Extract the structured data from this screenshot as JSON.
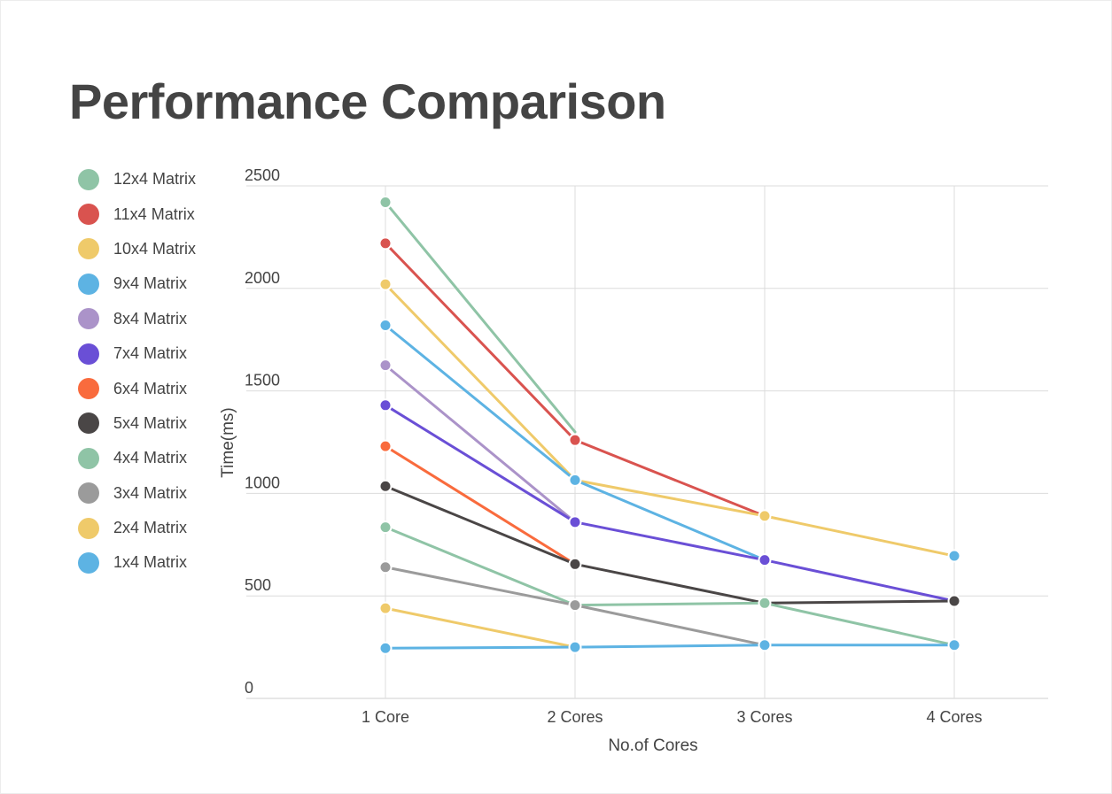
{
  "title": "Performance Comparison",
  "chart_data": {
    "type": "line",
    "title": "Performance Comparison",
    "xlabel": "No.of Cores",
    "ylabel": "Time(ms)",
    "categories": [
      "1 Core",
      "2 Cores",
      "3 Cores",
      "4 Cores"
    ],
    "ylim": [
      0,
      2500
    ],
    "yticks": [
      0,
      500,
      1000,
      1500,
      2000,
      2500
    ],
    "grid": true,
    "legend": "left",
    "series": [
      {
        "name": "12x4 Matrix",
        "color": "#8fc4a6",
        "values": [
          2420,
          1300,
          null,
          null
        ]
      },
      {
        "name": "11x4 Matrix",
        "color": "#d9534f",
        "values": [
          2220,
          1260,
          890,
          null
        ]
      },
      {
        "name": "10x4 Matrix",
        "color": "#efca6a",
        "values": [
          2020,
          1065,
          890,
          695
        ]
      },
      {
        "name": "9x4 Matrix",
        "color": "#5db3e3",
        "values": [
          1820,
          1065,
          675,
          null
        ]
      },
      {
        "name": "8x4 Matrix",
        "color": "#ab93c9",
        "values": [
          1625,
          860,
          null,
          null
        ]
      },
      {
        "name": "7x4 Matrix",
        "color": "#6a4fd6",
        "values": [
          1430,
          860,
          675,
          475
        ]
      },
      {
        "name": "6x4 Matrix",
        "color": "#f96b3d",
        "values": [
          1230,
          655,
          null,
          null
        ]
      },
      {
        "name": "5x4 Matrix",
        "color": "#4a4646",
        "values": [
          1035,
          655,
          465,
          475
        ]
      },
      {
        "name": "4x4 Matrix",
        "color": "#8fc4a6",
        "values": [
          835,
          455,
          465,
          260
        ]
      },
      {
        "name": "3x4 Matrix",
        "color": "#9b9b9b",
        "values": [
          640,
          455,
          260,
          null
        ]
      },
      {
        "name": "2x4 Matrix",
        "color": "#efca6a",
        "values": [
          440,
          250,
          null,
          null
        ]
      },
      {
        "name": "1x4 Matrix",
        "color": "#5db3e3",
        "values": [
          245,
          250,
          260,
          260
        ]
      }
    ],
    "markers": [
      {
        "category": 0,
        "value": 2420,
        "color": "#8fc4a6"
      },
      {
        "category": 0,
        "value": 2220,
        "color": "#d9534f"
      },
      {
        "category": 0,
        "value": 2020,
        "color": "#efca6a"
      },
      {
        "category": 0,
        "value": 1820,
        "color": "#5db3e3"
      },
      {
        "category": 0,
        "value": 1625,
        "color": "#ab93c9"
      },
      {
        "category": 0,
        "value": 1430,
        "color": "#6a4fd6"
      },
      {
        "category": 0,
        "value": 1230,
        "color": "#f96b3d"
      },
      {
        "category": 0,
        "value": 1035,
        "color": "#4a4646"
      },
      {
        "category": 0,
        "value": 835,
        "color": "#8fc4a6"
      },
      {
        "category": 0,
        "value": 640,
        "color": "#9b9b9b"
      },
      {
        "category": 0,
        "value": 440,
        "color": "#efca6a"
      },
      {
        "category": 0,
        "value": 245,
        "color": "#5db3e3"
      },
      {
        "category": 1,
        "value": 1260,
        "color": "#d9534f"
      },
      {
        "category": 1,
        "value": 1065,
        "color": "#5db3e3"
      },
      {
        "category": 1,
        "value": 860,
        "color": "#6a4fd6"
      },
      {
        "category": 1,
        "value": 655,
        "color": "#4a4646"
      },
      {
        "category": 1,
        "value": 455,
        "color": "#9b9b9b"
      },
      {
        "category": 1,
        "value": 250,
        "color": "#5db3e3"
      },
      {
        "category": 2,
        "value": 890,
        "color": "#efca6a"
      },
      {
        "category": 2,
        "value": 675,
        "color": "#6a4fd6"
      },
      {
        "category": 2,
        "value": 465,
        "color": "#8fc4a6"
      },
      {
        "category": 2,
        "value": 260,
        "color": "#5db3e3"
      },
      {
        "category": 3,
        "value": 695,
        "color": "#5db3e3"
      },
      {
        "category": 3,
        "value": 475,
        "color": "#4a4646"
      },
      {
        "category": 3,
        "value": 260,
        "color": "#5db3e3"
      }
    ]
  }
}
